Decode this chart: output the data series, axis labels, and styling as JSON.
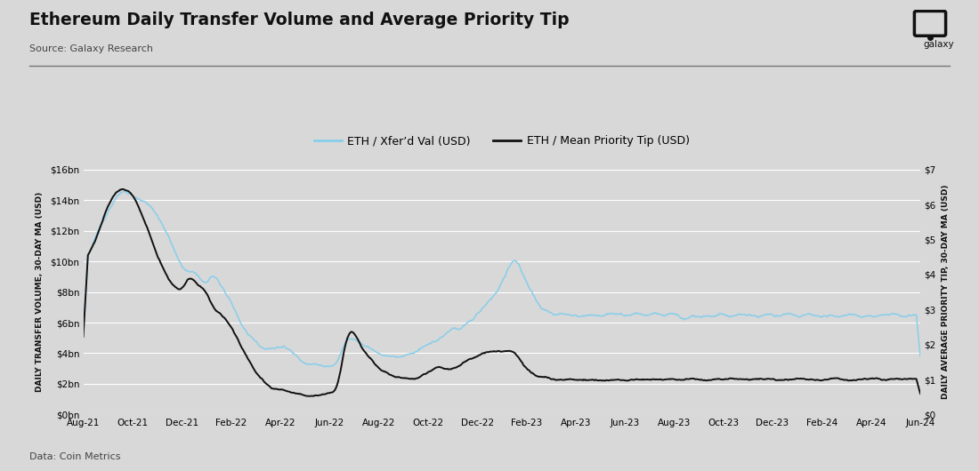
{
  "title": "Ethereum Daily Transfer Volume and Average Priority Tip",
  "source": "Source: Galaxy Research",
  "footnote": "Data: Coin Metrics",
  "legend": [
    "ETH / Xfer’d Val (USD)",
    "ETH / Mean Priority Tip (USD)"
  ],
  "ylabel_left": "DAILY TRANSFER VOLUME, 30-DAY MA (USD)",
  "ylabel_right": "DAILY AVERAGE PRIORITY TIP, 30-DAY MA (USD)",
  "left_ylim": [
    0,
    16000000000.0
  ],
  "right_ylim": [
    0,
    7
  ],
  "left_yticks": [
    0,
    2000000000.0,
    4000000000.0,
    6000000000.0,
    8000000000.0,
    10000000000.0,
    12000000000.0,
    14000000000.0,
    16000000000.0
  ],
  "right_yticks": [
    0,
    1,
    2,
    3,
    4,
    5,
    6,
    7
  ],
  "left_ytick_labels": [
    "$0bn",
    "$2bn",
    "$4bn",
    "$6bn",
    "$8bn",
    "$10bn",
    "$12bn",
    "$14bn",
    "$16bn"
  ],
  "right_ytick_labels": [
    "$0",
    "$1",
    "$2",
    "$3",
    "$4",
    "$5",
    "$6",
    "$7"
  ],
  "color_blue": "#87CEEB",
  "color_black": "#111111",
  "bg_color": "#d8d8d8",
  "plot_bg_color": "#d8d8d8",
  "xtick_labels": [
    "Aug-21",
    "Oct-21",
    "Dec-21",
    "Feb-22",
    "Apr-22",
    "Jun-22",
    "Aug-22",
    "Oct-22",
    "Dec-22",
    "Feb-23",
    "Apr-23",
    "Jun-23",
    "Aug-23",
    "Oct-23",
    "Dec-23",
    "Feb-24",
    "Apr-24",
    "Jun-24"
  ]
}
